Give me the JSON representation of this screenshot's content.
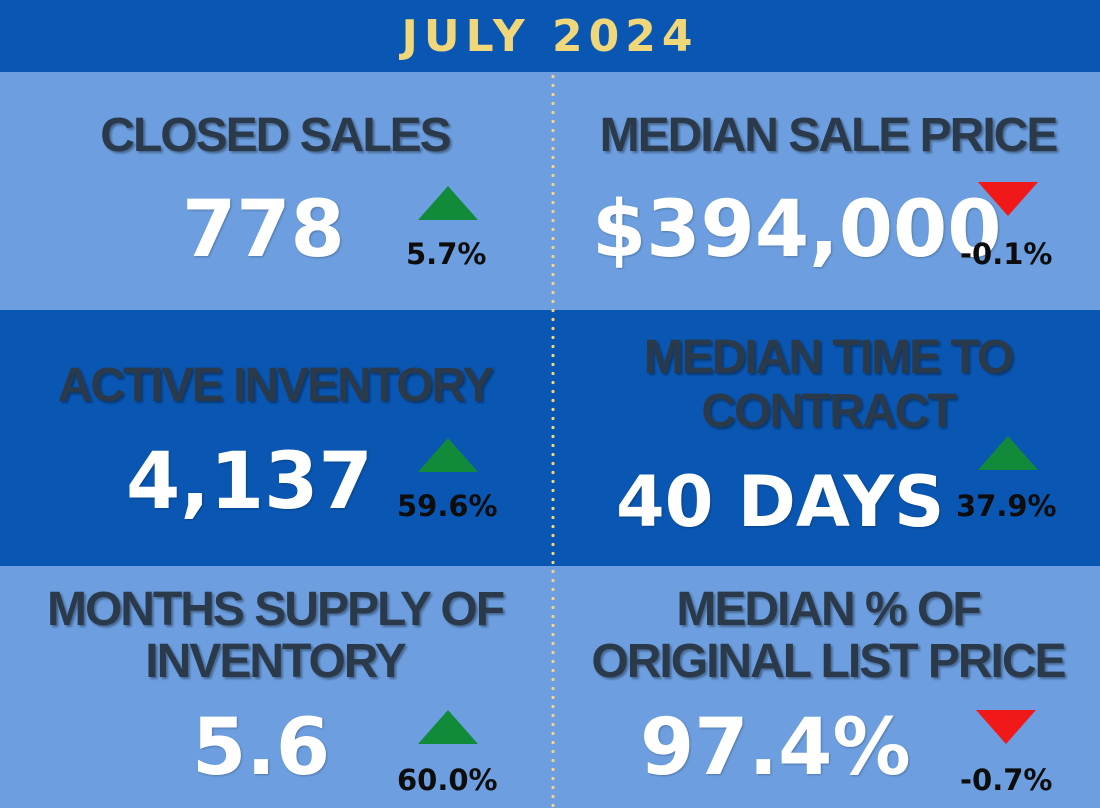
{
  "header": {
    "title": "JULY 2024"
  },
  "stats": {
    "closed_sales": {
      "label": "CLOSED SALES",
      "value": "778",
      "change": "5.7%",
      "direction": "up"
    },
    "median_sale_price": {
      "label": "MEDIAN SALE PRICE",
      "value": "$394,000",
      "change": "-0.1%",
      "direction": "down"
    },
    "active_inventory": {
      "label": "ACTIVE INVENTORY",
      "value": "4,137",
      "change": "59.6%",
      "direction": "up"
    },
    "median_time_to_contract": {
      "label_line1": "MEDIAN TIME TO",
      "label_line2": "CONTRACT",
      "value": "40 DAYS",
      "change": "37.9%",
      "direction": "up"
    },
    "months_supply": {
      "label_line1": "MONTHS SUPPLY OF",
      "label_line2": "INVENTORY",
      "value": "5.6",
      "change": "60.0%",
      "direction": "up"
    },
    "median_pct_list_price": {
      "label_line1": "MEDIAN % OF",
      "label_line2": "ORIGINAL LIST PRICE",
      "value": "97.4%",
      "change": "-0.7%",
      "direction": "down"
    }
  },
  "colors": {
    "background_dark": "#0a57b3",
    "background_light": "#6d9fe0",
    "title": "#f0d77a",
    "up_arrow": "#118a3a",
    "down_arrow": "#f01818"
  },
  "icons": {
    "up": "triangle-up-icon",
    "down": "triangle-down-icon"
  }
}
